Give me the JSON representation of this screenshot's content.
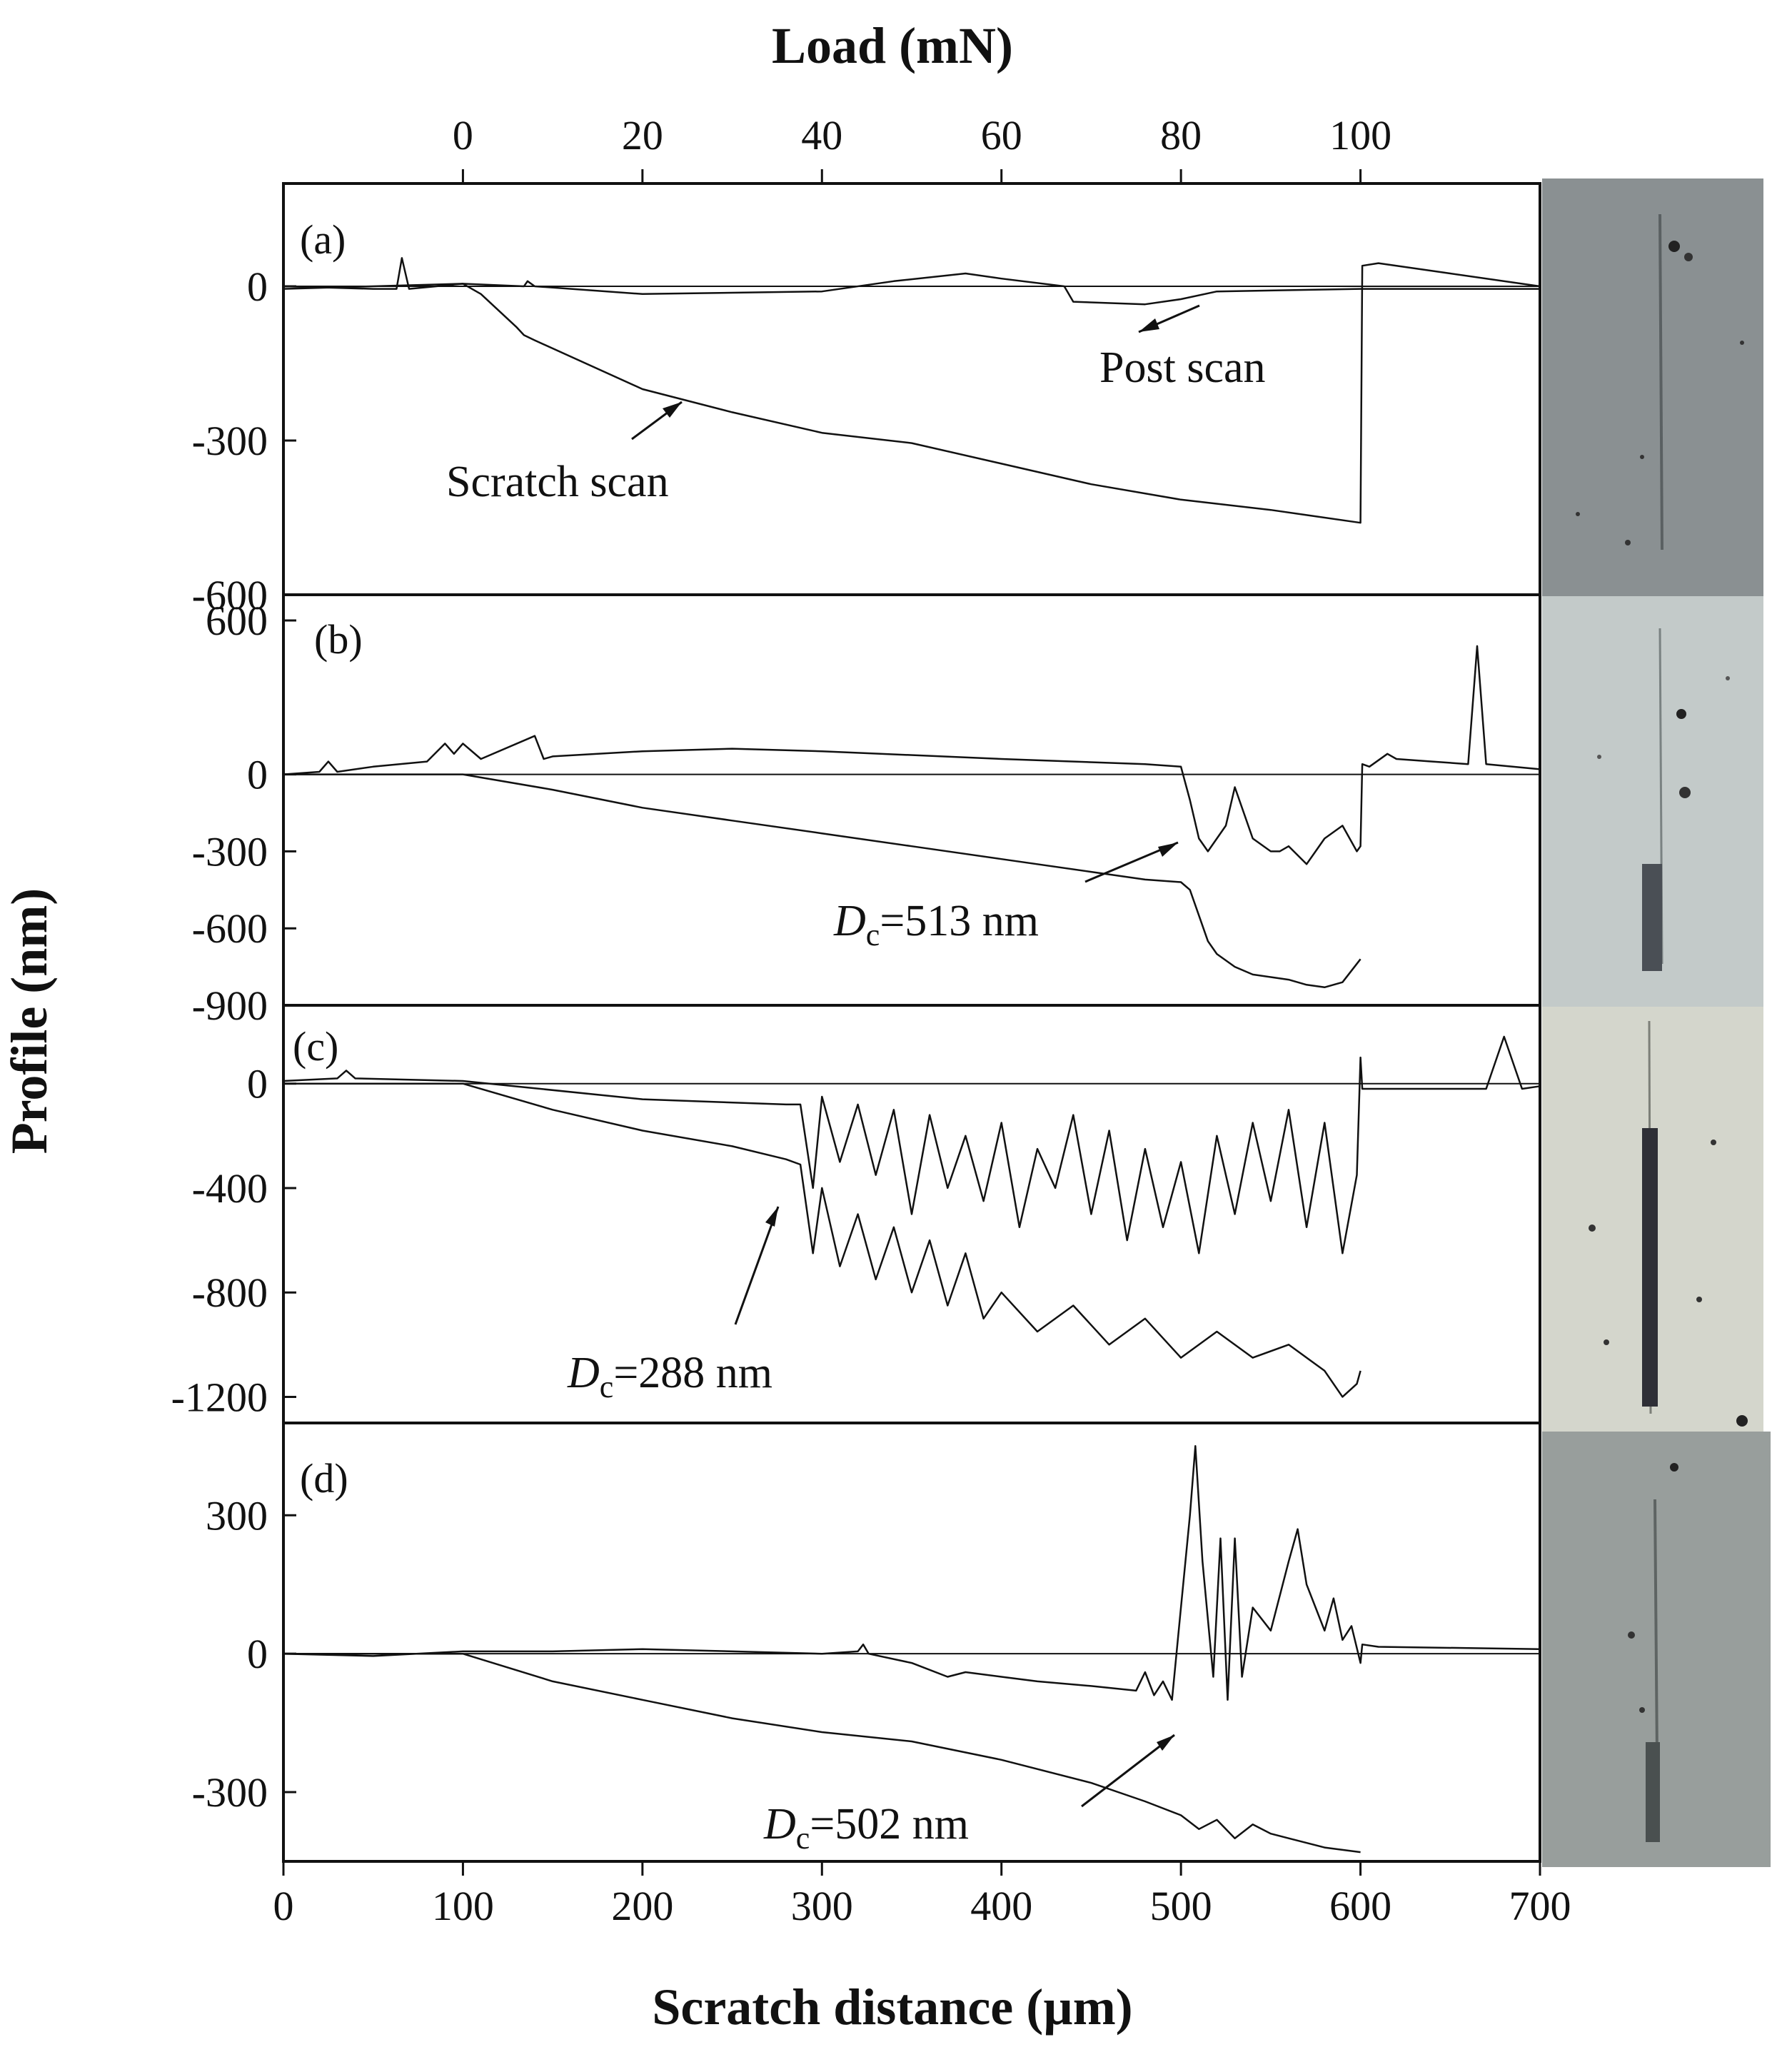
{
  "figure": {
    "top_axis_label": "Load (mN)",
    "x_axis_label": "Scratch distance (µm)",
    "y_axis_label": "Profile (nm)"
  },
  "chart_data": [
    {
      "type": "line",
      "panel_label": "(a)",
      "xlim": [
        0,
        700
      ],
      "ylim": [
        -600,
        200
      ],
      "yticks": [
        0,
        -300,
        -600
      ],
      "top_axis": {
        "ticks": [
          0,
          20,
          40,
          60,
          80,
          100
        ],
        "note": "Load 0 mN at 100 µm, 100 mN at 600 µm"
      },
      "series": [
        {
          "name": "Scratch scan",
          "x": [
            0,
            50,
            63,
            66,
            70,
            100,
            110,
            130,
            134,
            140,
            200,
            250,
            300,
            350,
            400,
            450,
            500,
            550,
            570,
            600,
            601,
            610,
            650,
            700
          ],
          "y": [
            0,
            -5,
            -5,
            55,
            -5,
            5,
            -15,
            -80,
            -95,
            -105,
            -200,
            -245,
            -285,
            -305,
            -345,
            -385,
            -415,
            -435,
            -445,
            -460,
            40,
            45,
            25,
            0
          ]
        },
        {
          "name": "Post scan",
          "x": [
            0,
            100,
            134,
            136,
            140,
            200,
            300,
            340,
            380,
            400,
            435,
            440,
            480,
            500,
            520,
            600,
            700
          ],
          "y": [
            -5,
            5,
            0,
            10,
            0,
            -15,
            -10,
            10,
            25,
            15,
            0,
            -30,
            -35,
            -25,
            -10,
            -5,
            -5
          ]
        }
      ],
      "annotations": [
        "Scratch scan",
        "Post scan"
      ],
      "image_panel": "optical micrograph of scratch track"
    },
    {
      "type": "line",
      "panel_label": "(b)",
      "xlim": [
        0,
        700
      ],
      "ylim": [
        -900,
        700
      ],
      "yticks": [
        600,
        0,
        -300,
        -600,
        -900
      ],
      "series": [
        {
          "name": "",
          "x": [
            0,
            20,
            25,
            30,
            50,
            80,
            90,
            95,
            100,
            110,
            140,
            145,
            150,
            200,
            250,
            300,
            400,
            480,
            500,
            505,
            510,
            515,
            525,
            530,
            540,
            550,
            555,
            560,
            570,
            575,
            580,
            590,
            598,
            600,
            601,
            605,
            615,
            620,
            640,
            660,
            665,
            670,
            700
          ],
          "y": [
            0,
            10,
            50,
            10,
            30,
            50,
            120,
            80,
            120,
            60,
            150,
            60,
            70,
            90,
            100,
            90,
            60,
            40,
            30,
            -100,
            -250,
            -300,
            -200,
            -50,
            -250,
            -300,
            -300,
            -280,
            -350,
            -300,
            -250,
            -200,
            -300,
            -280,
            40,
            30,
            80,
            60,
            50,
            40,
            500,
            40,
            20
          ]
        },
        {
          "name": "",
          "x": [
            0,
            100,
            150,
            200,
            250,
            300,
            350,
            400,
            450,
            480,
            500,
            505,
            510,
            515,
            520,
            530,
            540,
            550,
            560,
            570,
            580,
            590,
            600
          ],
          "y": [
            0,
            0,
            -60,
            -130,
            -180,
            -230,
            -280,
            -330,
            -380,
            -410,
            -420,
            -450,
            -550,
            -650,
            -700,
            -750,
            -780,
            -790,
            -800,
            -820,
            -830,
            -810,
            -720
          ]
        }
      ],
      "annotations": [
        "D_c=513 nm"
      ],
      "image_panel": "optical micrograph of scratch track"
    },
    {
      "type": "line",
      "panel_label": "(c)",
      "xlim": [
        0,
        700
      ],
      "ylim": [
        -1300,
        300
      ],
      "yticks": [
        0,
        -400,
        -800,
        -1200
      ],
      "series": [
        {
          "name": "",
          "x": [
            0,
            30,
            35,
            40,
            100,
            200,
            280,
            288,
            295,
            300,
            310,
            320,
            330,
            340,
            350,
            360,
            370,
            380,
            390,
            400,
            410,
            420,
            430,
            440,
            450,
            460,
            470,
            480,
            490,
            500,
            510,
            520,
            530,
            540,
            550,
            560,
            570,
            580,
            590,
            598,
            600,
            601,
            610,
            670,
            680,
            690,
            700
          ],
          "y": [
            10,
            20,
            50,
            20,
            10,
            -60,
            -80,
            -80,
            -400,
            -50,
            -300,
            -80,
            -350,
            -100,
            -500,
            -120,
            -400,
            -200,
            -450,
            -150,
            -550,
            -250,
            -400,
            -120,
            -500,
            -180,
            -600,
            -250,
            -550,
            -300,
            -650,
            -200,
            -500,
            -150,
            -450,
            -100,
            -550,
            -150,
            -650,
            -350,
            100,
            -20,
            -20,
            -20,
            180,
            -20,
            -10
          ]
        },
        {
          "name": "",
          "x": [
            0,
            100,
            150,
            200,
            250,
            280,
            288,
            295,
            300,
            310,
            320,
            330,
            340,
            350,
            360,
            370,
            380,
            390,
            400,
            420,
            440,
            460,
            480,
            500,
            520,
            540,
            560,
            580,
            590,
            598,
            600
          ],
          "y": [
            0,
            0,
            -100,
            -180,
            -240,
            -290,
            -310,
            -650,
            -400,
            -700,
            -500,
            -750,
            -550,
            -800,
            -600,
            -850,
            -650,
            -900,
            -800,
            -950,
            -850,
            -1000,
            -900,
            -1050,
            -950,
            -1050,
            -1000,
            -1100,
            -1200,
            -1150,
            -1100
          ]
        }
      ],
      "annotations": [
        "D_c=288 nm"
      ],
      "image_panel": "optical micrograph of scratch track"
    },
    {
      "type": "line",
      "panel_label": "(d)",
      "xlim": [
        0,
        700
      ],
      "ylim": [
        -450,
        500
      ],
      "yticks": [
        300,
        0,
        -300
      ],
      "series": [
        {
          "name": "",
          "x": [
            0,
            50,
            100,
            150,
            200,
            250,
            300,
            320,
            323,
            326,
            350,
            370,
            380,
            400,
            420,
            450,
            475,
            480,
            485,
            490,
            495,
            500,
            505,
            508,
            512,
            518,
            522,
            526,
            530,
            534,
            540,
            550,
            560,
            565,
            570,
            575,
            580,
            585,
            590,
            595,
            600,
            601,
            610,
            700
          ],
          "y": [
            0,
            -5,
            5,
            5,
            10,
            5,
            0,
            5,
            20,
            0,
            -20,
            -50,
            -40,
            -50,
            -60,
            -70,
            -80,
            -40,
            -90,
            -60,
            -100,
            100,
            300,
            450,
            200,
            -50,
            250,
            -100,
            250,
            -50,
            100,
            50,
            200,
            270,
            150,
            100,
            50,
            120,
            30,
            60,
            -20,
            20,
            15,
            10
          ]
        },
        {
          "name": "",
          "x": [
            0,
            100,
            150,
            200,
            250,
            300,
            350,
            400,
            450,
            480,
            500,
            510,
            520,
            530,
            540,
            550,
            560,
            580,
            600
          ],
          "y": [
            0,
            0,
            -60,
            -100,
            -140,
            -170,
            -190,
            -230,
            -280,
            -320,
            -350,
            -380,
            -360,
            -400,
            -370,
            -390,
            -400,
            -420,
            -430
          ]
        }
      ],
      "annotations": [
        "D_c=502 nm"
      ],
      "image_panel": "optical micrograph of scratch track"
    }
  ],
  "x_ticks": [
    0,
    100,
    200,
    300,
    400,
    500,
    600,
    700
  ],
  "colors": {
    "line": "#111111",
    "micro_a": "#8a9092",
    "micro_b": "#c3cac9",
    "micro_c": "#d4d6cc",
    "micro_d": "#989e9c"
  }
}
